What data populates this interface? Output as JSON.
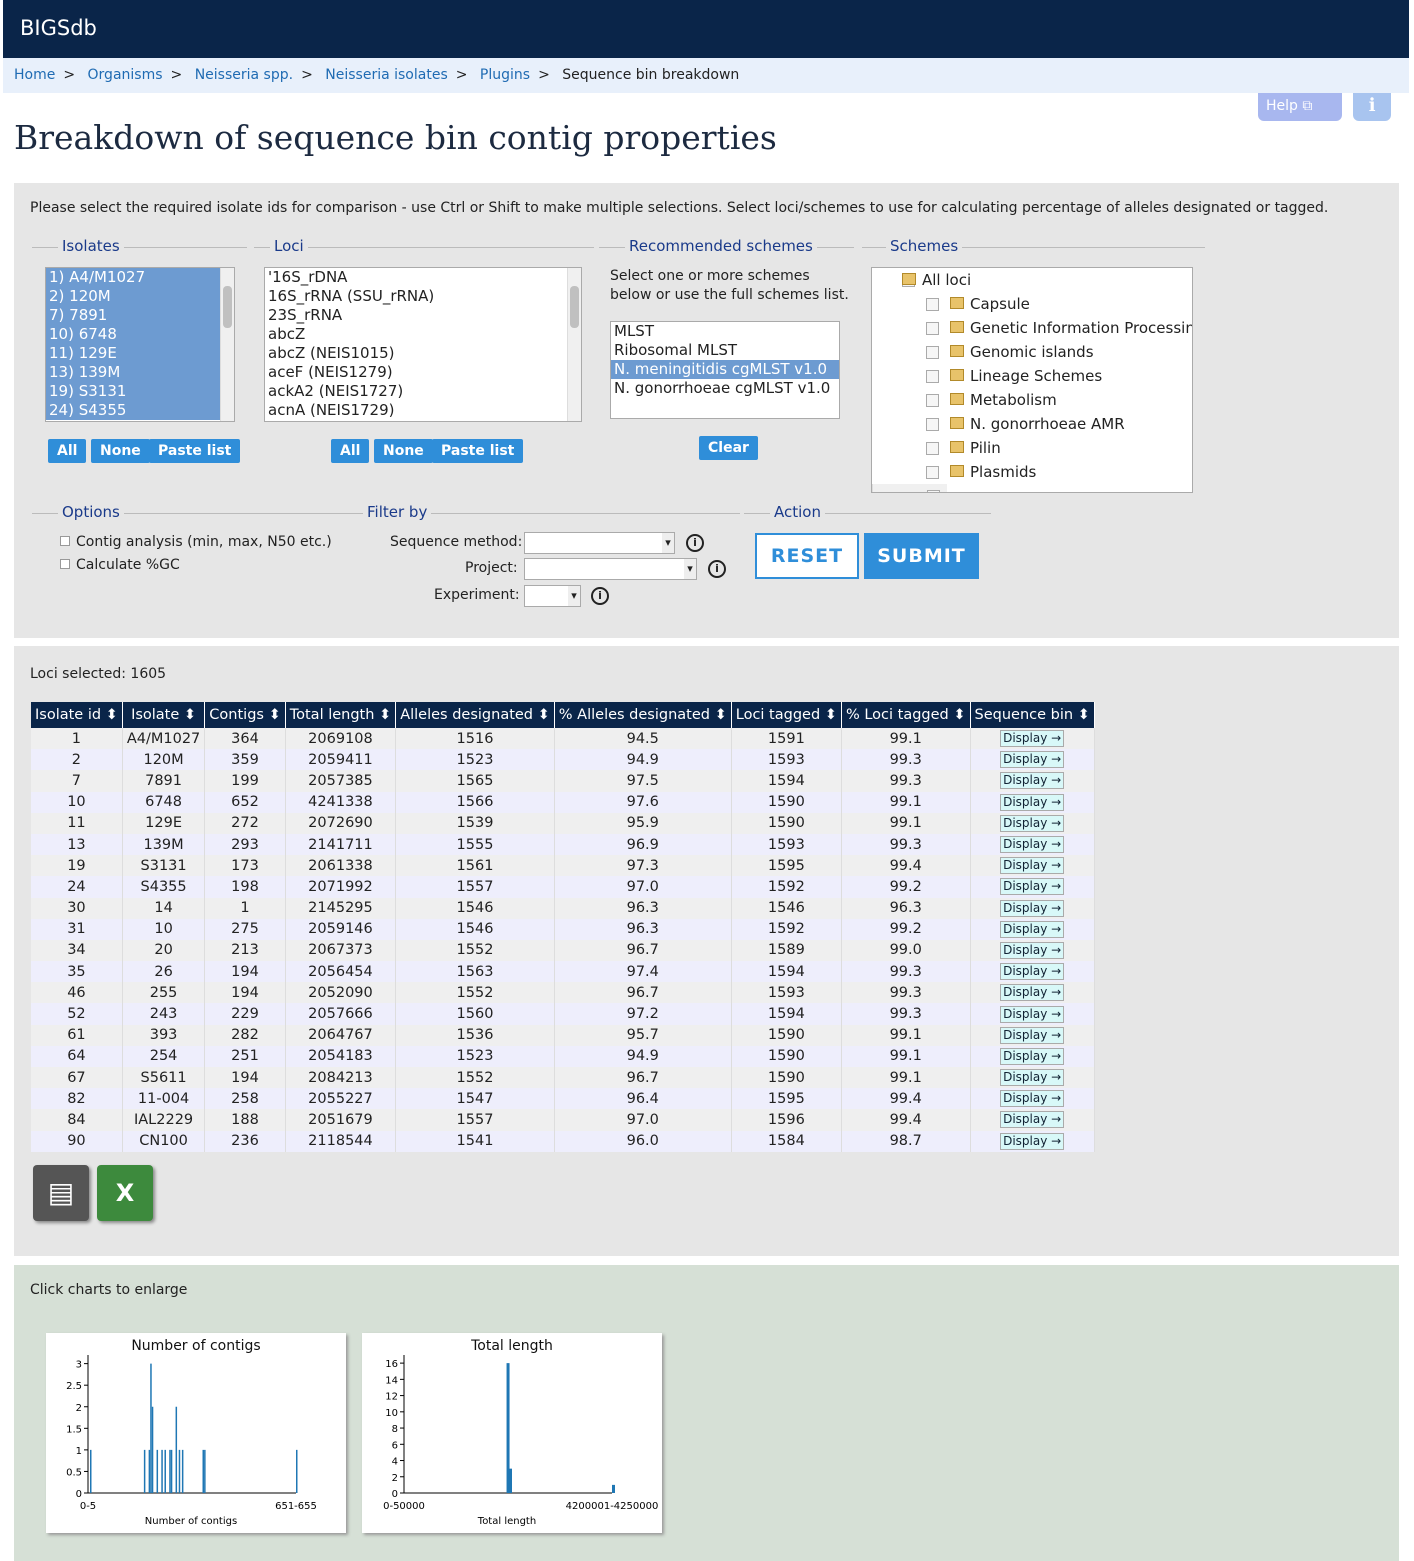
{
  "app": {
    "title": "BIGSdb"
  },
  "breadcrumb": [
    "Home",
    "Organisms",
    "Neisseria spp.",
    "Neisseria isolates",
    "Plugins",
    "Sequence bin breakdown"
  ],
  "header": {
    "help": "Help",
    "page_title": "Breakdown of sequence bin contig properties"
  },
  "form": {
    "instructions": "Please select the required isolate ids for comparison - use Ctrl or Shift to make multiple selections. Select loci/schemes to use for calculating percentage of alleles designated or tagged.",
    "isolates_legend": "Isolates",
    "isolates": [
      "1) A4/M1027",
      "2) 120M",
      "7) 7891",
      "10) 6748",
      "11) 129E",
      "13) 139M",
      "19) S3131",
      "24) S4355"
    ],
    "loci_legend": "Loci",
    "loci": [
      "'16S_rDNA",
      "16S_rRNA (SSU_rRNA)",
      "23S_rRNA",
      "abcZ",
      "abcZ (NEIS1015)",
      "aceF (NEIS1279)",
      "ackA2 (NEIS1727)",
      "acnA (NEIS1729)"
    ],
    "all": "All",
    "none": "None",
    "paste": "Paste list",
    "rec_legend": "Recommended schemes",
    "rec_text": "Select one or more schemes below or use the full schemes list.",
    "rec_schemes": [
      "MLST",
      "Ribosomal MLST",
      "N. meningitidis cgMLST v1.0",
      "N. gonorrhoeae cgMLST v1.0"
    ],
    "rec_selected": 2,
    "clear": "Clear",
    "schemes_legend": "Schemes",
    "schemes_root": "All loci",
    "schemes": [
      "Capsule",
      "Genetic Information Processing",
      "Genomic islands",
      "Lineage Schemes",
      "Metabolism",
      "N. gonorrhoeae AMR",
      "Pilin",
      "Plasmids"
    ],
    "options_legend": "Options",
    "opt1": "Contig analysis (min, max, N50 etc.)",
    "opt2": "Calculate %GC",
    "filter_legend": "Filter by",
    "seq_method": "Sequence method:",
    "project": "Project:",
    "experiment": "Experiment:",
    "action_legend": "Action",
    "reset": "RESET",
    "submit": "SUBMIT"
  },
  "results": {
    "loci_selected": "Loci selected: 1605",
    "columns": [
      "Isolate id",
      "Isolate",
      "Contigs",
      "Total length",
      "Alleles designated",
      "% Alleles designated",
      "Loci tagged",
      "% Loci tagged",
      "Sequence bin"
    ],
    "display": "Display",
    "rows": [
      [
        "1",
        "A4/M1027",
        "364",
        "2069108",
        "1516",
        "94.5",
        "1591",
        "99.1"
      ],
      [
        "2",
        "120M",
        "359",
        "2059411",
        "1523",
        "94.9",
        "1593",
        "99.3"
      ],
      [
        "7",
        "7891",
        "199",
        "2057385",
        "1565",
        "97.5",
        "1594",
        "99.3"
      ],
      [
        "10",
        "6748",
        "652",
        "4241338",
        "1566",
        "97.6",
        "1590",
        "99.1"
      ],
      [
        "11",
        "129E",
        "272",
        "2072690",
        "1539",
        "95.9",
        "1590",
        "99.1"
      ],
      [
        "13",
        "139M",
        "293",
        "2141711",
        "1555",
        "96.9",
        "1593",
        "99.3"
      ],
      [
        "19",
        "S3131",
        "173",
        "2061338",
        "1561",
        "97.3",
        "1595",
        "99.4"
      ],
      [
        "24",
        "S4355",
        "198",
        "2071992",
        "1557",
        "97.0",
        "1592",
        "99.2"
      ],
      [
        "30",
        "14",
        "1",
        "2145295",
        "1546",
        "96.3",
        "1546",
        "96.3"
      ],
      [
        "31",
        "10",
        "275",
        "2059146",
        "1546",
        "96.3",
        "1592",
        "99.2"
      ],
      [
        "34",
        "20",
        "213",
        "2067373",
        "1552",
        "96.7",
        "1589",
        "99.0"
      ],
      [
        "35",
        "26",
        "194",
        "2056454",
        "1563",
        "97.4",
        "1594",
        "99.3"
      ],
      [
        "46",
        "255",
        "194",
        "2052090",
        "1552",
        "96.7",
        "1593",
        "99.3"
      ],
      [
        "52",
        "243",
        "229",
        "2057666",
        "1560",
        "97.2",
        "1594",
        "99.3"
      ],
      [
        "61",
        "393",
        "282",
        "2064767",
        "1536",
        "95.7",
        "1590",
        "99.1"
      ],
      [
        "64",
        "254",
        "251",
        "2054183",
        "1523",
        "94.9",
        "1590",
        "99.1"
      ],
      [
        "67",
        "S5611",
        "194",
        "2084213",
        "1552",
        "96.7",
        "1590",
        "99.1"
      ],
      [
        "82",
        "11-004",
        "258",
        "2055227",
        "1547",
        "96.4",
        "1595",
        "99.4"
      ],
      [
        "84",
        "IAL2229",
        "188",
        "2051679",
        "1557",
        "97.0",
        "1596",
        "99.4"
      ],
      [
        "90",
        "CN100",
        "236",
        "2118544",
        "1541",
        "96.0",
        "1584",
        "98.7"
      ]
    ]
  },
  "charts_note": "Click charts to enlarge",
  "chart_data": [
    {
      "type": "bar",
      "title": "Number of contigs",
      "xlabel": "Number of contigs",
      "ylabel": "",
      "ylim": [
        0,
        3.2
      ],
      "yticks": [
        0,
        0.5,
        1,
        1.5,
        2,
        2.5,
        3
      ],
      "xtick_labels": [
        "0-5",
        "651-655"
      ],
      "bin_count": 131,
      "bins": [
        [
          0,
          1
        ],
        [
          34,
          1
        ],
        [
          37,
          1
        ],
        [
          38,
          3
        ],
        [
          39,
          2
        ],
        [
          42,
          1
        ],
        [
          45,
          1
        ],
        [
          47,
          1
        ],
        [
          50,
          1
        ],
        [
          51,
          1
        ],
        [
          54,
          2
        ],
        [
          56,
          1
        ],
        [
          58,
          1
        ],
        [
          71,
          1
        ],
        [
          72,
          1
        ],
        [
          130,
          1
        ]
      ]
    },
    {
      "type": "bar",
      "title": "Total length",
      "xlabel": "Total length",
      "ylabel": "",
      "ylim": [
        0,
        17
      ],
      "yticks": [
        0,
        2,
        4,
        6,
        8,
        10,
        12,
        14,
        16
      ],
      "xtick_labels": [
        "0-50000",
        "4200001-4250000"
      ],
      "bin_count": 85,
      "bins": [
        [
          41,
          16
        ],
        [
          42,
          3
        ],
        [
          84,
          1
        ]
      ]
    }
  ]
}
